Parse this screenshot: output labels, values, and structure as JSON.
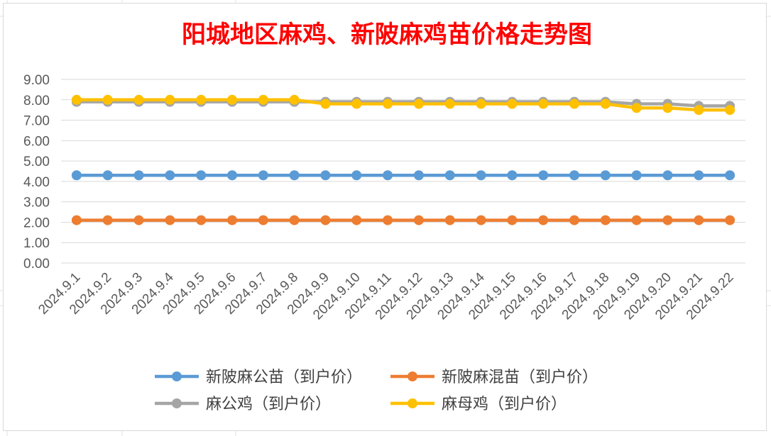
{
  "chart_data": {
    "type": "line",
    "title": "阳城地区麻鸡、新陂麻鸡苗价格走势图",
    "xlabel": "",
    "ylabel": "",
    "ylim": [
      0,
      9
    ],
    "ytick_labels": [
      "0.00",
      "1.00",
      "2.00",
      "3.00",
      "4.00",
      "5.00",
      "6.00",
      "7.00",
      "8.00",
      "9.00"
    ],
    "grid": true,
    "legend_position": "bottom",
    "categories": [
      "2024.9.1",
      "2024.9.2",
      "2024.9.3",
      "2024.9.4",
      "2024.9.5",
      "2024.9.6",
      "2024.9.7",
      "2024.9.8",
      "2024.9.9",
      "2024.9.10",
      "2024.9.11",
      "2024.9.12",
      "2024.9.13",
      "2024.9.14",
      "2024.9.15",
      "2024.9.16",
      "2024.9.17",
      "2024.9.18",
      "2024.9.19",
      "2024.9.20",
      "2024.9.21",
      "2024.9.22"
    ],
    "series": [
      {
        "name": "新陂麻公苗（到户价）",
        "color": "#5b9bd5",
        "values": [
          4.3,
          4.3,
          4.3,
          4.3,
          4.3,
          4.3,
          4.3,
          4.3,
          4.3,
          4.3,
          4.3,
          4.3,
          4.3,
          4.3,
          4.3,
          4.3,
          4.3,
          4.3,
          4.3,
          4.3,
          4.3,
          4.3
        ]
      },
      {
        "name": "新陂麻混苗（到户价）",
        "color": "#ed7d31",
        "values": [
          2.1,
          2.1,
          2.1,
          2.1,
          2.1,
          2.1,
          2.1,
          2.1,
          2.1,
          2.1,
          2.1,
          2.1,
          2.1,
          2.1,
          2.1,
          2.1,
          2.1,
          2.1,
          2.1,
          2.1,
          2.1,
          2.1
        ]
      },
      {
        "name": "麻公鸡（到户价）",
        "color": "#a5a5a5",
        "values": [
          7.9,
          7.9,
          7.9,
          7.9,
          7.9,
          7.9,
          7.9,
          7.9,
          7.9,
          7.9,
          7.9,
          7.9,
          7.9,
          7.9,
          7.9,
          7.9,
          7.9,
          7.9,
          7.8,
          7.8,
          7.7,
          7.7
        ]
      },
      {
        "name": "麻母鸡（到户价）",
        "color": "#ffc000",
        "values": [
          8.0,
          8.0,
          8.0,
          8.0,
          8.0,
          8.0,
          8.0,
          8.0,
          7.8,
          7.8,
          7.8,
          7.8,
          7.8,
          7.8,
          7.8,
          7.8,
          7.8,
          7.8,
          7.6,
          7.6,
          7.5,
          7.5
        ]
      }
    ]
  }
}
